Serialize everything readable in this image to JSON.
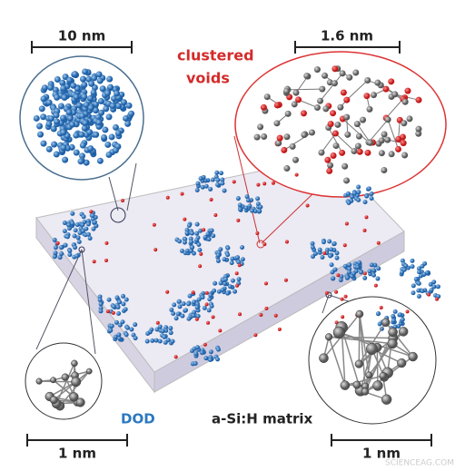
{
  "scale_bars": {
    "top_left": "10 nm",
    "top_right": "1.6 nm",
    "bottom_left": "1 nm",
    "bottom_right": "1 nm"
  },
  "labels": {
    "clustered_voids": [
      "clustered",
      "voids"
    ],
    "dod": "DOD",
    "matrix": "a-Si:H matrix"
  },
  "watermark": "SCIENCEAG.COM"
}
